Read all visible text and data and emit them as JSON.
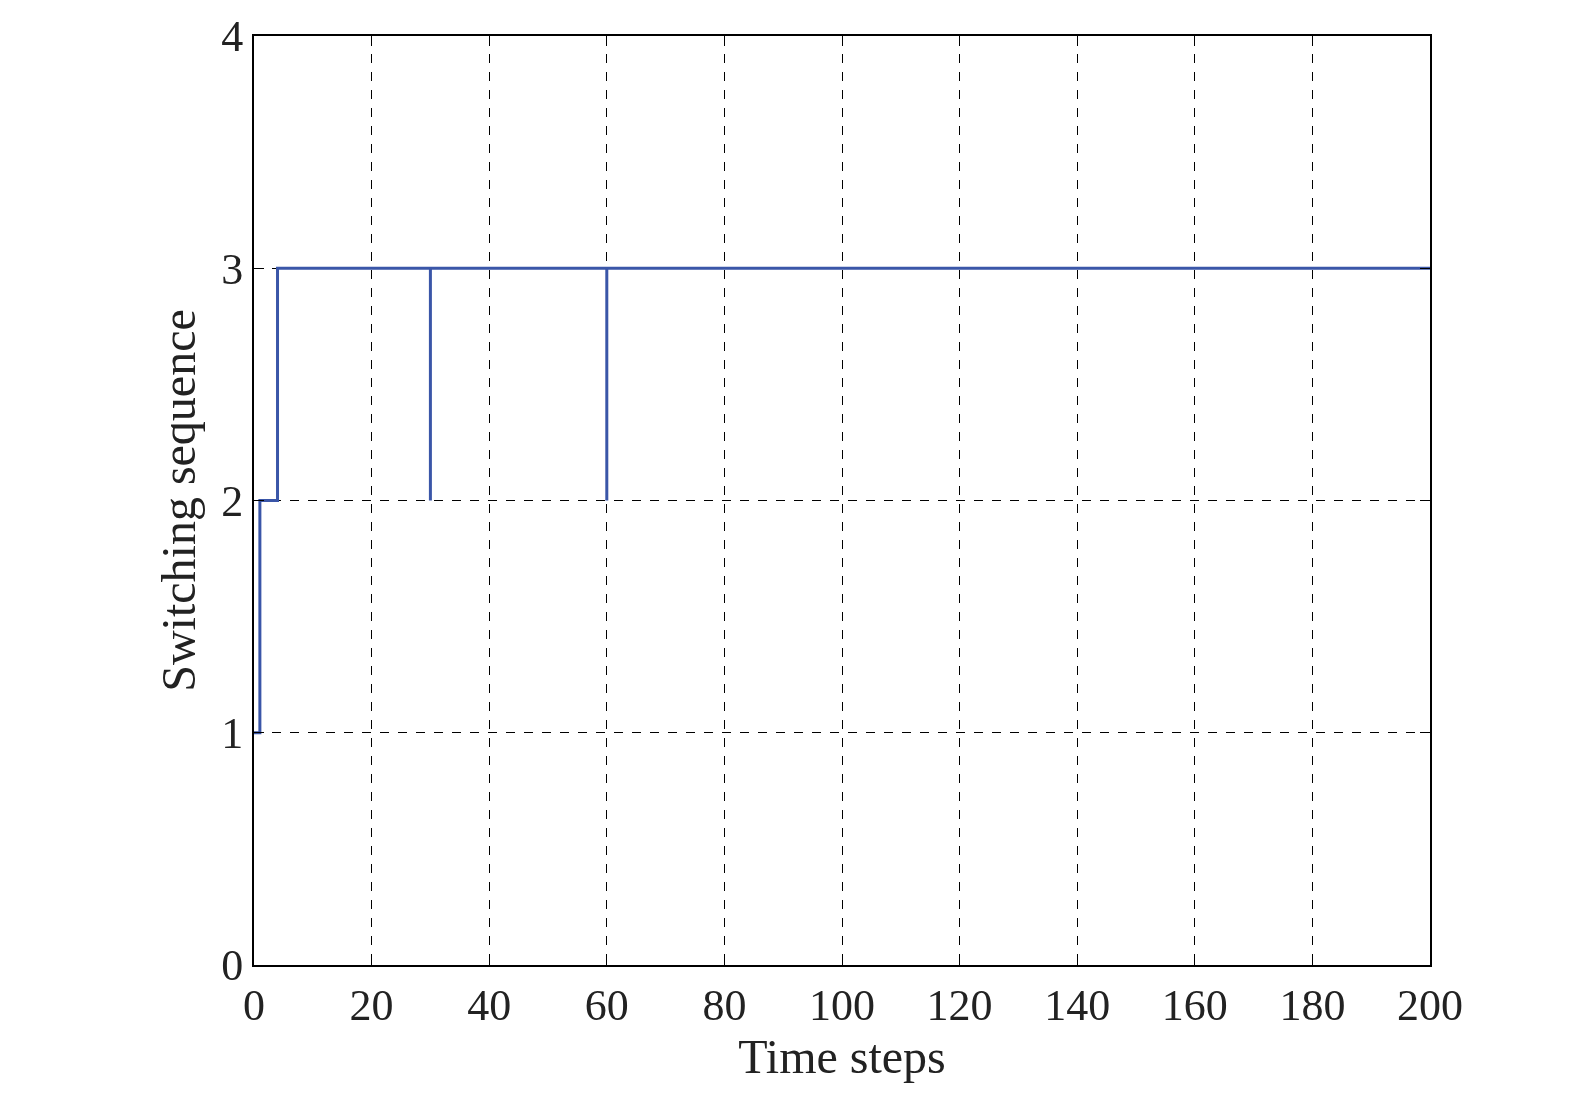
{
  "chart_data": {
    "type": "line",
    "xlabel": "Time steps",
    "ylabel": "Switching sequence",
    "x": [
      0,
      1,
      1,
      4,
      4,
      30,
      30,
      30,
      60,
      60,
      60,
      200
    ],
    "series": [
      {
        "color": "#3a56a8",
        "values": [
          1,
          1,
          2,
          2,
          3,
          3,
          2,
          3,
          3,
          2,
          3,
          3
        ]
      }
    ],
    "xlim": [
      0,
      200
    ],
    "xticks": [
      0,
      20,
      40,
      60,
      80,
      100,
      120,
      140,
      160,
      180,
      200
    ],
    "ylim": [
      0,
      4
    ],
    "yticks": [
      0,
      1,
      2,
      3,
      4
    ],
    "grid": true,
    "legend": false,
    "marker": "none",
    "line_style": "solid"
  }
}
